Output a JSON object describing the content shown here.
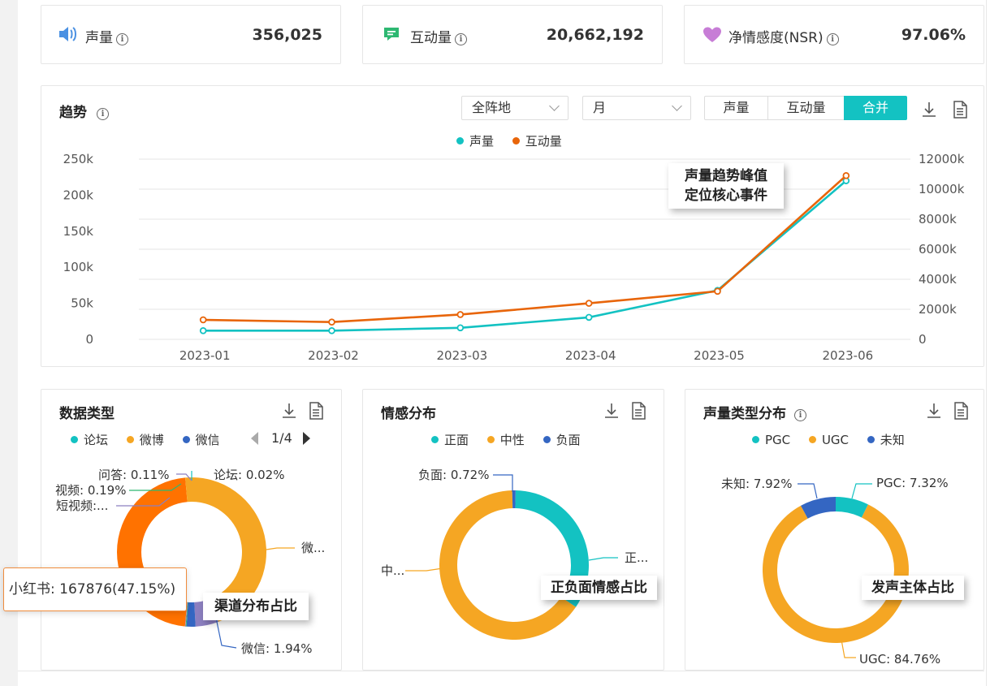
{
  "stats": [
    {
      "label": "声量",
      "value": "356,025",
      "icon": "speaker-icon",
      "color": "#4a90e2"
    },
    {
      "label": "互动量",
      "value": "20,662,192",
      "icon": "chat-icon",
      "color": "#2eb872"
    },
    {
      "label": "净情感度(NSR)",
      "value": "97.06%",
      "icon": "heart-icon",
      "color": "#c77dd6"
    }
  ],
  "trend": {
    "title": "趋势",
    "region_select": "全阵地",
    "period_select": "月",
    "segments": [
      "声量",
      "互动量",
      "合并"
    ],
    "active_segment": "合并",
    "annotation_line1": "声量趋势峰值",
    "annotation_line2": "定位核心事件"
  },
  "data_type": {
    "title": "数据类型",
    "legend": [
      "论坛",
      "微博",
      "微信"
    ],
    "pager": "1/4",
    "tooltip": "小红书: 167876(47.15%)",
    "annotation": "渠道分布占比",
    "slice_labels": {
      "qa": "问答: 0.11%",
      "forum": "论坛: 0.02%",
      "video": "视频: 0.19%",
      "short_video": "短视频:...",
      "weibo": "微...",
      "wechat": "微信: 1.94%"
    }
  },
  "sentiment": {
    "title": "情感分布",
    "legend": [
      "正面",
      "中性",
      "负面"
    ],
    "annotation": "正负面情感占比",
    "slice_labels": {
      "negative": "负面: 0.72%",
      "positive": "正...",
      "neutral": "中..."
    }
  },
  "voice_type": {
    "title": "声量类型分布",
    "legend": [
      "PGC",
      "UGC",
      "未知"
    ],
    "annotation": "发声主体占比",
    "slice_labels": {
      "unknown": "未知: 7.92%",
      "pgc": "PGC: 7.32%",
      "ugc": "UGC: 84.76%"
    }
  },
  "colors": {
    "teal": "#13c2c2",
    "orange": "#f5a623",
    "blue": "#3466c2",
    "deep_orange": "#ff7200",
    "purple": "#8c7fc0",
    "line_orange": "#e8650a"
  },
  "chart_data": [
    {
      "type": "line",
      "categories": [
        "2023-01",
        "2023-02",
        "2023-03",
        "2023-04",
        "2023-05",
        "2023-06"
      ],
      "series": [
        {
          "name": "声量",
          "axis": "left",
          "values": [
            12000,
            12000,
            16000,
            30500,
            68000,
            220000
          ]
        },
        {
          "name": "互动量",
          "axis": "right",
          "values": [
            1300000,
            1150000,
            1650000,
            2400000,
            3200000,
            10900000
          ]
        }
      ],
      "y_left": {
        "ticks": [
          "0",
          "50k",
          "100k",
          "150k",
          "200k",
          "250k"
        ],
        "range": [
          0,
          250000
        ]
      },
      "y_right": {
        "ticks": [
          "0",
          "2000k",
          "4000k",
          "6000k",
          "8000k",
          "10000k",
          "12000k"
        ],
        "range": [
          0,
          12000000
        ]
      },
      "grid": true,
      "legend": "top-center"
    },
    {
      "type": "pie",
      "donut": true,
      "slices": [
        {
          "name": "小红书",
          "percent": 47.15,
          "value": 167876
        },
        {
          "name": "微博",
          "percent": 45.5
        },
        {
          "name": "短视频",
          "percent": 5.0
        },
        {
          "name": "微信",
          "percent": 1.94
        },
        {
          "name": "视频",
          "percent": 0.19
        },
        {
          "name": "问答",
          "percent": 0.11
        },
        {
          "name": "论坛",
          "percent": 0.02
        }
      ]
    },
    {
      "type": "pie",
      "donut": true,
      "slices": [
        {
          "name": "正面",
          "percent": 34.2
        },
        {
          "name": "中性",
          "percent": 65.08
        },
        {
          "name": "负面",
          "percent": 0.72
        }
      ]
    },
    {
      "type": "pie",
      "donut": true,
      "slices": [
        {
          "name": "PGC",
          "percent": 7.32
        },
        {
          "name": "UGC",
          "percent": 84.76
        },
        {
          "name": "未知",
          "percent": 7.92
        }
      ]
    }
  ]
}
